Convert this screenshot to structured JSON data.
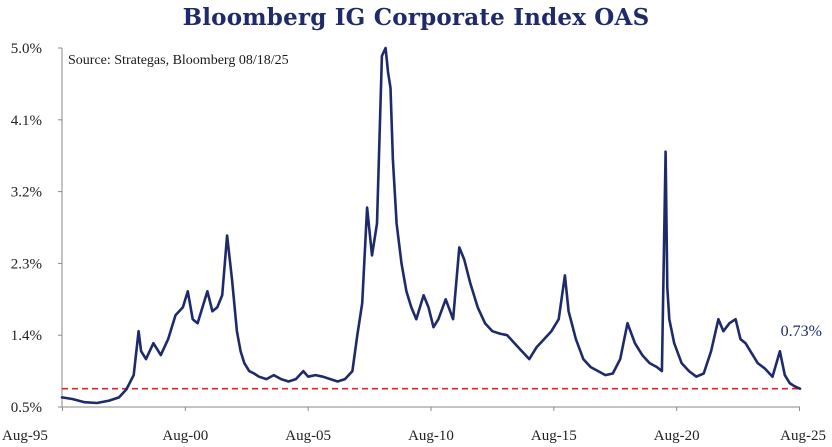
{
  "chart_data": {
    "type": "line",
    "title": "Bloomberg IG Corporate Index OAS",
    "source": "Source: Strategas, Bloomberg 08/18/25",
    "xlabel": "",
    "ylabel": "",
    "x_ticks": [
      "Aug-95",
      "Aug-00",
      "Aug-05",
      "Aug-10",
      "Aug-15",
      "Aug-20",
      "Aug-25"
    ],
    "y_ticks": [
      "0.5%",
      "1.4%",
      "2.3%",
      "3.2%",
      "4.1%",
      "5.0%"
    ],
    "ylim": [
      0.5,
      5.0
    ],
    "xlim": [
      1995.58,
      2025.62
    ],
    "grid": false,
    "last_value_label": "0.73%",
    "reference_line": {
      "value": 0.73,
      "style": "dashed",
      "color": "#d9262c"
    },
    "series": [
      {
        "color": "#1f2a6b",
        "x": [
          1995.58,
          1996.0,
          1996.5,
          1997.0,
          1997.5,
          1997.9,
          1998.2,
          1998.5,
          1998.7,
          1998.8,
          1999.0,
          1999.3,
          1999.6,
          1999.9,
          2000.2,
          2000.5,
          2000.7,
          2000.9,
          2001.1,
          2001.3,
          2001.5,
          2001.7,
          2001.9,
          2002.1,
          2002.3,
          2002.5,
          2002.7,
          2002.85,
          2003.0,
          2003.2,
          2003.4,
          2003.6,
          2003.9,
          2004.2,
          2004.5,
          2004.8,
          2005.1,
          2005.4,
          2005.6,
          2005.9,
          2006.2,
          2006.5,
          2006.8,
          2007.1,
          2007.4,
          2007.6,
          2007.8,
          2008.0,
          2008.2,
          2008.4,
          2008.6,
          2008.75,
          2008.85,
          2008.95,
          2009.05,
          2009.2,
          2009.4,
          2009.6,
          2009.8,
          2010.0,
          2010.3,
          2010.5,
          2010.7,
          2010.9,
          2011.2,
          2011.5,
          2011.75,
          2011.95,
          2012.2,
          2012.5,
          2012.8,
          2013.1,
          2013.4,
          2013.7,
          2014.0,
          2014.3,
          2014.6,
          2014.9,
          2015.2,
          2015.5,
          2015.8,
          2016.05,
          2016.2,
          2016.5,
          2016.8,
          2017.1,
          2017.4,
          2017.7,
          2018.0,
          2018.3,
          2018.6,
          2018.9,
          2019.2,
          2019.5,
          2019.8,
          2020.0,
          2020.15,
          2020.22,
          2020.3,
          2020.5,
          2020.8,
          2021.1,
          2021.4,
          2021.7,
          2022.0,
          2022.3,
          2022.5,
          2022.75,
          2023.0,
          2023.2,
          2023.4,
          2023.6,
          2023.9,
          2024.2,
          2024.5,
          2024.8,
          2025.0,
          2025.2,
          2025.4,
          2025.62
        ],
        "y": [
          0.62,
          0.6,
          0.56,
          0.55,
          0.58,
          0.62,
          0.72,
          0.9,
          1.45,
          1.2,
          1.1,
          1.3,
          1.15,
          1.35,
          1.65,
          1.75,
          1.95,
          1.6,
          1.55,
          1.75,
          1.95,
          1.7,
          1.75,
          1.9,
          2.65,
          2.1,
          1.45,
          1.2,
          1.05,
          0.95,
          0.92,
          0.88,
          0.85,
          0.9,
          0.85,
          0.82,
          0.85,
          0.95,
          0.88,
          0.9,
          0.88,
          0.85,
          0.82,
          0.85,
          0.95,
          1.4,
          1.8,
          3.0,
          2.4,
          2.8,
          4.9,
          5.0,
          4.7,
          4.5,
          3.6,
          2.8,
          2.3,
          1.95,
          1.75,
          1.6,
          1.9,
          1.75,
          1.5,
          1.6,
          1.85,
          1.6,
          2.5,
          2.35,
          2.05,
          1.75,
          1.55,
          1.45,
          1.42,
          1.4,
          1.3,
          1.2,
          1.1,
          1.25,
          1.35,
          1.45,
          1.6,
          2.15,
          1.7,
          1.35,
          1.1,
          1.0,
          0.95,
          0.9,
          0.92,
          1.1,
          1.55,
          1.3,
          1.15,
          1.05,
          1.0,
          0.95,
          3.7,
          2.0,
          1.6,
          1.3,
          1.05,
          0.95,
          0.88,
          0.92,
          1.2,
          1.6,
          1.45,
          1.55,
          1.6,
          1.35,
          1.3,
          1.2,
          1.05,
          0.98,
          0.88,
          1.2,
          0.9,
          0.8,
          0.76,
          0.73
        ]
      }
    ]
  }
}
